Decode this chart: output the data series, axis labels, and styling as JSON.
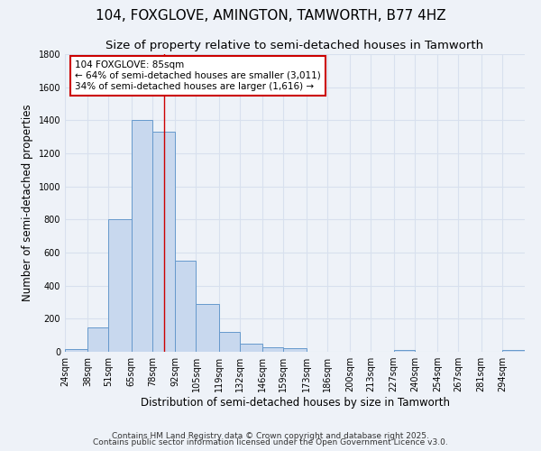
{
  "title1": "104, FOXGLOVE, AMINGTON, TAMWORTH, B77 4HZ",
  "title2": "Size of property relative to semi-detached houses in Tamworth",
  "xlabel": "Distribution of semi-detached houses by size in Tamworth",
  "ylabel": "Number of semi-detached properties",
  "bin_edges": [
    24,
    38,
    51,
    65,
    78,
    92,
    105,
    119,
    132,
    146,
    159,
    173,
    186,
    200,
    213,
    227,
    240,
    254,
    267,
    281,
    294,
    308
  ],
  "bar_heights": [
    15,
    150,
    800,
    1400,
    1330,
    550,
    290,
    120,
    50,
    25,
    20,
    0,
    0,
    0,
    0,
    10,
    0,
    0,
    0,
    0,
    10
  ],
  "bar_color": "#c8d8ee",
  "bar_edge_color": "#6699cc",
  "property_size": 85,
  "annotation_text": "104 FOXGLOVE: 85sqm\n← 64% of semi-detached houses are smaller (3,011)\n34% of semi-detached houses are larger (1,616) →",
  "annotation_box_color": "#ffffff",
  "annotation_border_color": "#cc0000",
  "vline_color": "#cc0000",
  "ylim": [
    0,
    1800
  ],
  "yticks": [
    0,
    200,
    400,
    600,
    800,
    1000,
    1200,
    1400,
    1600,
    1800
  ],
  "grid_color": "#d8e0ee",
  "background_color": "#eef2f8",
  "plot_bg_color": "#eef2f8",
  "footer_line1": "Contains HM Land Registry data © Crown copyright and database right 2025.",
  "footer_line2": "Contains public sector information licensed under the Open Government Licence v3.0.",
  "title1_fontsize": 11,
  "title2_fontsize": 9.5,
  "axis_label_fontsize": 8.5,
  "tick_fontsize": 7,
  "annotation_fontsize": 7.5,
  "footer_fontsize": 6.5
}
